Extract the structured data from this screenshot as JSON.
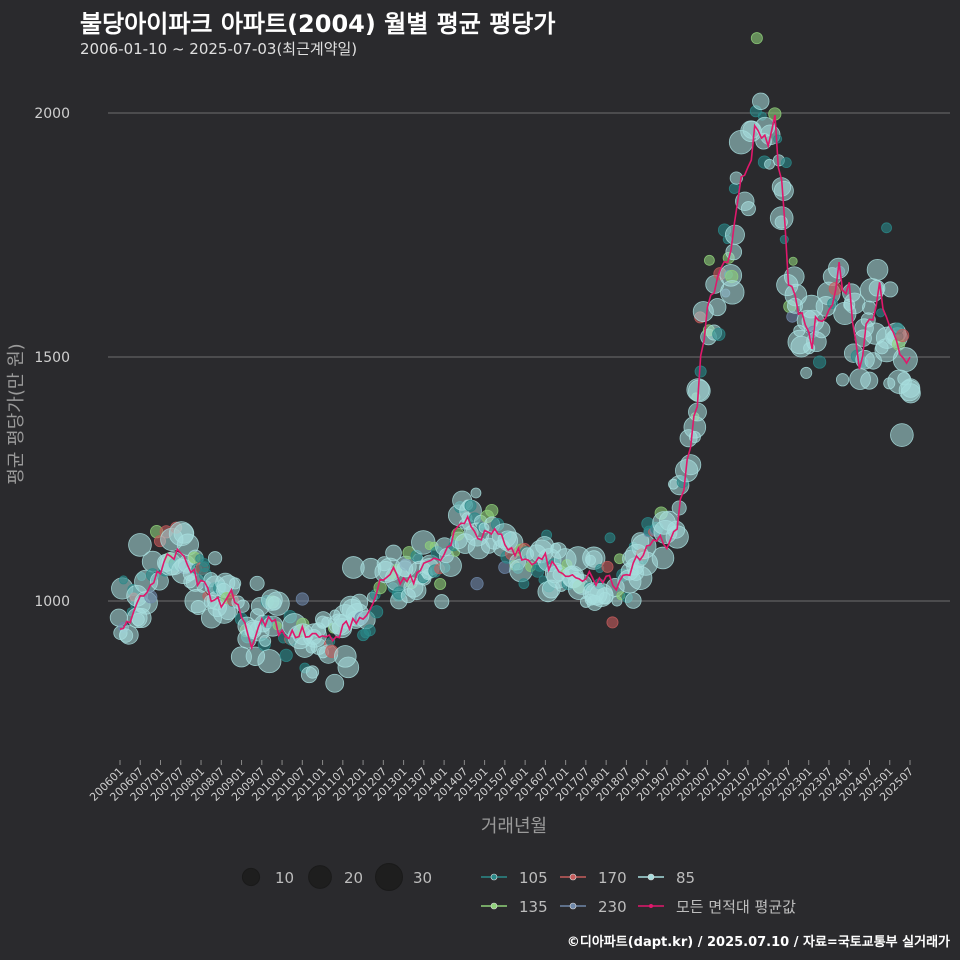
{
  "title": "불당아이파크 아파트(2004) 월별 평균 평당가",
  "subtitle": "2006-01-10 ~ 2025-07-03(최근계약일)",
  "caption": "©디아파트(dapt.kr) / 2025.07.10 / 자료=국토교통부 실거래가",
  "colors": {
    "background": "#2a2a2d",
    "grid": "#6e6e6e",
    "avg_line": "#e0186c",
    "s105": "#2a8a8a",
    "s135": "#8fd17a",
    "s170": "#c65c5c",
    "s230": "#6f88aa",
    "s85": "#a8dede"
  },
  "size_legend": {
    "labels": [
      "10",
      "20",
      "30"
    ],
    "values": [
      10,
      20,
      30
    ]
  },
  "chart_data": {
    "type": "scatter",
    "title": "불당아이파크 아파트(2004) 월별 평균 평당가",
    "subtitle": "2006-01-10 ~ 2025-07-03(최근계약일)",
    "xlabel": "거래년월",
    "ylabel": "평균 평당가(만 원)",
    "ylim": [
      660,
      2100
    ],
    "xlim": [
      "2006-01",
      "2025-07"
    ],
    "yticks": [
      1000,
      1500,
      2000
    ],
    "xticks": [
      "200601",
      "200607",
      "200701",
      "200707",
      "200801",
      "200807",
      "200901",
      "200907",
      "201001",
      "201007",
      "201101",
      "201107",
      "201201",
      "201207",
      "201301",
      "201307",
      "201401",
      "201407",
      "201501",
      "201507",
      "201601",
      "201607",
      "201701",
      "201707",
      "201801",
      "201807",
      "201901",
      "201907",
      "202001",
      "202007",
      "202101",
      "202107",
      "202201",
      "202207",
      "202301",
      "202307",
      "202401",
      "202407",
      "202501",
      "202507"
    ],
    "grid": "horizontal",
    "legend_position": "bottom",
    "line_series": {
      "name": "모든 면적대 평균값",
      "monthly_anchors": [
        [
          "2006-01",
          940
        ],
        [
          "2006-04",
          950
        ],
        [
          "2006-07",
          1010
        ],
        [
          "2006-10",
          1040
        ],
        [
          "2007-01",
          1050
        ],
        [
          "2007-03",
          1100
        ],
        [
          "2007-06",
          1095
        ],
        [
          "2007-09",
          1075
        ],
        [
          "2008-01",
          1035
        ],
        [
          "2008-04",
          1010
        ],
        [
          "2008-07",
          1000
        ],
        [
          "2008-10",
          1015
        ],
        [
          "2009-01",
          980
        ],
        [
          "2009-04",
          900
        ],
        [
          "2009-07",
          955
        ],
        [
          "2009-10",
          960
        ],
        [
          "2010-01",
          930
        ],
        [
          "2010-04",
          940
        ],
        [
          "2010-07",
          935
        ],
        [
          "2010-10",
          930
        ],
        [
          "2011-01",
          920
        ],
        [
          "2011-04",
          930
        ],
        [
          "2011-07",
          940
        ],
        [
          "2011-10",
          955
        ],
        [
          "2012-01",
          975
        ],
        [
          "2012-04",
          1000
        ],
        [
          "2012-07",
          1045
        ],
        [
          "2012-10",
          1065
        ],
        [
          "2013-01",
          1040
        ],
        [
          "2013-04",
          1045
        ],
        [
          "2013-07",
          1070
        ],
        [
          "2013-10",
          1090
        ],
        [
          "2014-01",
          1100
        ],
        [
          "2014-04",
          1130
        ],
        [
          "2014-07",
          1170
        ],
        [
          "2014-10",
          1140
        ],
        [
          "2015-01",
          1135
        ],
        [
          "2015-04",
          1140
        ],
        [
          "2015-07",
          1120
        ],
        [
          "2015-10",
          1105
        ],
        [
          "2016-01",
          1080
        ],
        [
          "2016-04",
          1090
        ],
        [
          "2016-07",
          1085
        ],
        [
          "2016-10",
          1060
        ],
        [
          "2017-01",
          1050
        ],
        [
          "2017-04",
          1055
        ],
        [
          "2017-07",
          1050
        ],
        [
          "2017-10",
          1040
        ],
        [
          "2018-01",
          1045
        ],
        [
          "2018-04",
          1035
        ],
        [
          "2018-07",
          1050
        ],
        [
          "2018-10",
          1080
        ],
        [
          "2019-01",
          1120
        ],
        [
          "2019-04",
          1130
        ],
        [
          "2019-07",
          1120
        ],
        [
          "2019-10",
          1160
        ],
        [
          "2020-01",
          1280
        ],
        [
          "2020-04",
          1420
        ],
        [
          "2020-07",
          1610
        ],
        [
          "2020-10",
          1650
        ],
        [
          "2021-01",
          1700
        ],
        [
          "2021-04",
          1800
        ],
        [
          "2021-07",
          1920
        ],
        [
          "2021-10",
          1960
        ],
        [
          "2022-01",
          1910
        ],
        [
          "2022-03",
          1970
        ],
        [
          "2022-05",
          1870
        ],
        [
          "2022-07",
          1680
        ],
        [
          "2022-10",
          1580
        ],
        [
          "2023-01",
          1540
        ],
        [
          "2023-04",
          1570
        ],
        [
          "2023-07",
          1620
        ],
        [
          "2023-10",
          1680
        ],
        [
          "2024-01",
          1640
        ],
        [
          "2024-04",
          1510
        ],
        [
          "2024-07",
          1560
        ],
        [
          "2024-10",
          1640
        ],
        [
          "2025-01",
          1540
        ],
        [
          "2025-04",
          1540
        ],
        [
          "2025-07",
          1510
        ]
      ]
    },
    "scatter_series": [
      {
        "name": "105",
        "color": "#2a8a8a"
      },
      {
        "name": "135",
        "color": "#8fd17a"
      },
      {
        "name": "170",
        "color": "#c65c5c"
      },
      {
        "name": "230",
        "color": "#6f88aa"
      },
      {
        "name": "85",
        "color": "#a8dede"
      }
    ]
  },
  "legend": {
    "line_label": "모든 면적대 평균값"
  }
}
